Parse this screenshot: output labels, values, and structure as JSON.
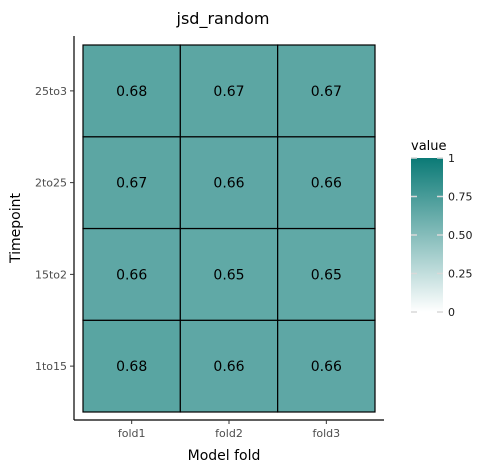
{
  "chart_data": {
    "type": "heatmap",
    "title": "jsd_random",
    "xlabel": "Model fold",
    "ylabel": "Timepoint",
    "x_categories": [
      "fold1",
      "fold2",
      "fold3"
    ],
    "y_categories": [
      "1to15",
      "15to2",
      "2to25",
      "25to3"
    ],
    "values": [
      [
        0.68,
        0.66,
        0.66
      ],
      [
        0.66,
        0.65,
        0.65
      ],
      [
        0.67,
        0.66,
        0.66
      ],
      [
        0.68,
        0.67,
        0.67
      ]
    ],
    "value_labels": [
      [
        "0.68",
        "0.66",
        "0.66"
      ],
      [
        "0.66",
        "0.65",
        "0.65"
      ],
      [
        "0.67",
        "0.66",
        "0.66"
      ],
      [
        "0.68",
        "0.67",
        "0.67"
      ]
    ],
    "legend": {
      "title": "value",
      "position": "right",
      "range": [
        0,
        1
      ],
      "ticks": [
        0,
        0.25,
        0.5,
        0.75,
        1
      ],
      "tick_labels": [
        "0",
        "0.25",
        "0.50",
        "0.75",
        "1"
      ],
      "color_low": "#ffffff",
      "color_high": "#0b7a76"
    },
    "grid": false
  }
}
